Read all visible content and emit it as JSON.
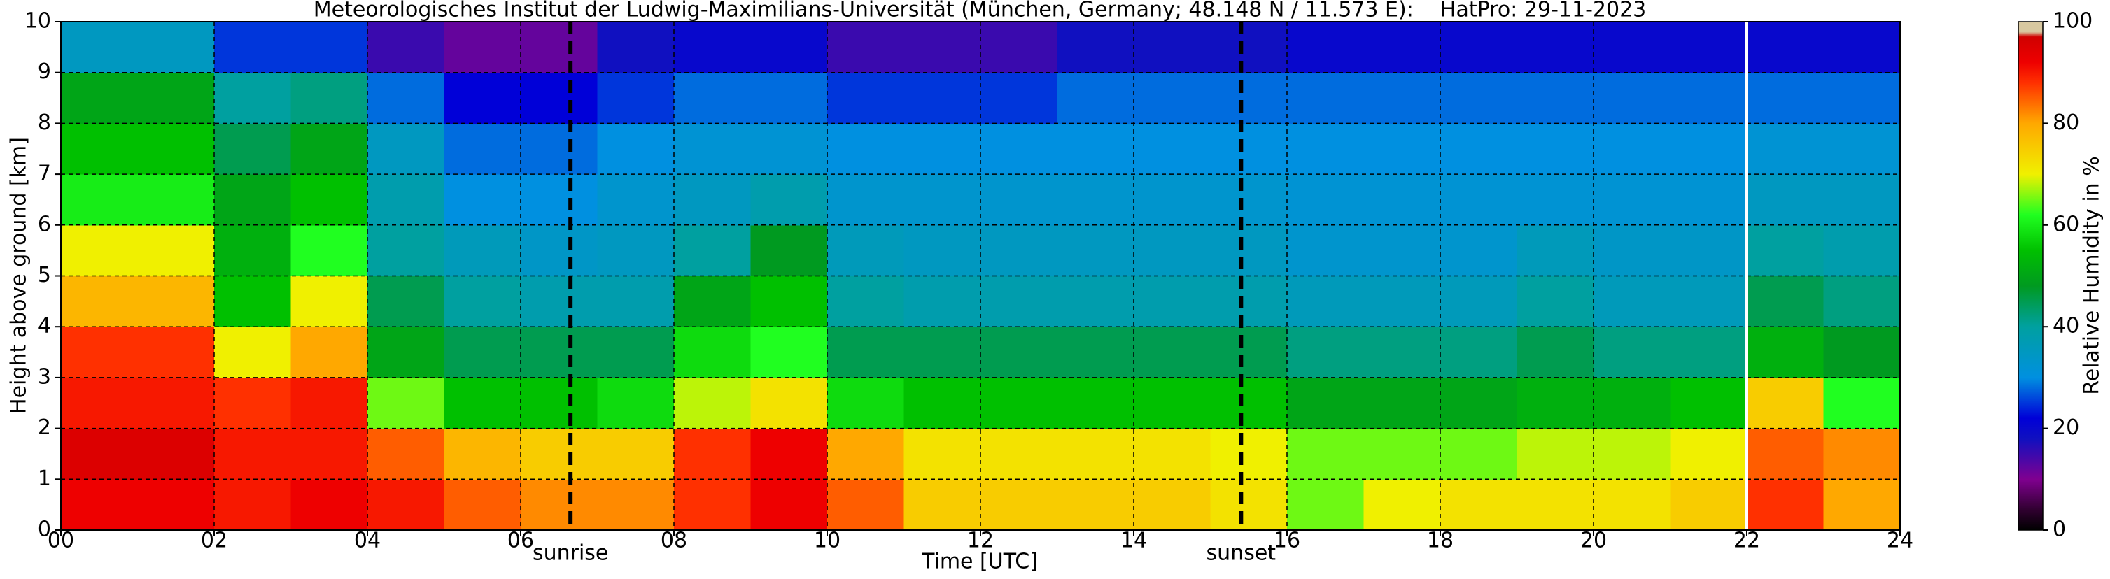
{
  "chart_data": {
    "type": "heatmap",
    "title": "Meteorologisches Institut der Ludwig-Maximilians-Universität (München, Germany; 48.148 N / 11.573 E):    HatPro: 29-11-2023",
    "xlabel": "Time [UTC]",
    "ylabel": "Height above ground [km]",
    "colorbar_label": "Relative Humidity in %",
    "xbins": [
      0,
      1,
      2,
      3,
      4,
      5,
      6,
      7,
      8,
      9,
      10,
      11,
      12,
      13,
      14,
      15,
      16,
      17,
      18,
      19,
      20,
      21,
      22,
      23,
      24
    ],
    "ybins": [
      0,
      1,
      2,
      3,
      4,
      5,
      6,
      7,
      8,
      9,
      10
    ],
    "z": [
      [
        92,
        92,
        90,
        92,
        90,
        85,
        82,
        82,
        88,
        92,
        85,
        75,
        75,
        75,
        75,
        72,
        65,
        70,
        72,
        72,
        72,
        75,
        88,
        80
      ],
      [
        95,
        95,
        90,
        90,
        85,
        78,
        75,
        75,
        88,
        92,
        80,
        72,
        72,
        72,
        72,
        70,
        65,
        65,
        65,
        68,
        68,
        70,
        85,
        82
      ],
      [
        90,
        90,
        88,
        90,
        65,
        55,
        55,
        58,
        68,
        72,
        58,
        55,
        55,
        55,
        55,
        55,
        50,
        50,
        50,
        52,
        52,
        55,
        75,
        62
      ],
      [
        88,
        88,
        70,
        80,
        50,
        45,
        45,
        45,
        58,
        62,
        45,
        45,
        45,
        45,
        45,
        45,
        42,
        42,
        42,
        45,
        42,
        42,
        52,
        48
      ],
      [
        78,
        78,
        55,
        70,
        45,
        40,
        38,
        38,
        50,
        55,
        40,
        38,
        38,
        38,
        38,
        38,
        36,
        36,
        36,
        40,
        36,
        36,
        45,
        42
      ],
      [
        70,
        70,
        52,
        62,
        40,
        36,
        34,
        35,
        40,
        48,
        36,
        35,
        35,
        35,
        35,
        35,
        33,
        33,
        33,
        36,
        34,
        34,
        40,
        38
      ],
      [
        60,
        60,
        50,
        55,
        38,
        30,
        30,
        33,
        35,
        38,
        33,
        33,
        33,
        33,
        33,
        33,
        32,
        32,
        32,
        32,
        32,
        32,
        35,
        35
      ],
      [
        55,
        55,
        45,
        50,
        35,
        28,
        28,
        30,
        32,
        32,
        30,
        30,
        30,
        30,
        30,
        30,
        30,
        30,
        30,
        30,
        30,
        30,
        32,
        32
      ],
      [
        50,
        50,
        40,
        42,
        28,
        22,
        22,
        25,
        28,
        28,
        25,
        25,
        25,
        28,
        28,
        28,
        28,
        28,
        28,
        28,
        28,
        28,
        28,
        28
      ],
      [
        35,
        35,
        25,
        25,
        15,
        12,
        12,
        18,
        20,
        20,
        15,
        15,
        15,
        18,
        18,
        18,
        20,
        20,
        20,
        20,
        20,
        20,
        20,
        20
      ]
    ],
    "xlim": [
      0,
      24
    ],
    "ylim": [
      0,
      10
    ],
    "zlim": [
      0,
      100
    ],
    "xticks": [
      {
        "value": 0,
        "label": "00"
      },
      {
        "value": 2,
        "label": "02"
      },
      {
        "value": 4,
        "label": "04"
      },
      {
        "value": 6,
        "label": "06"
      },
      {
        "value": 8,
        "label": "08"
      },
      {
        "value": 10,
        "label": "10"
      },
      {
        "value": 12,
        "label": "12"
      },
      {
        "value": 14,
        "label": "14"
      },
      {
        "value": 16,
        "label": "16"
      },
      {
        "value": 18,
        "label": "18"
      },
      {
        "value": 20,
        "label": "20"
      },
      {
        "value": 22,
        "label": "22"
      },
      {
        "value": 24,
        "label": "24"
      }
    ],
    "yticks": [
      0,
      1,
      2,
      3,
      4,
      5,
      6,
      7,
      8,
      9,
      10
    ],
    "zticks": [
      0,
      20,
      40,
      60,
      80,
      100
    ],
    "grid": true,
    "colormap": [
      [
        0,
        "#000000"
      ],
      [
        4,
        "#300030"
      ],
      [
        10,
        "#800090"
      ],
      [
        18,
        "#1010c0"
      ],
      [
        22,
        "#0000d8"
      ],
      [
        30,
        "#0090e0"
      ],
      [
        40,
        "#00a0a0"
      ],
      [
        48,
        "#009a20"
      ],
      [
        55,
        "#00c000"
      ],
      [
        62,
        "#20ff20"
      ],
      [
        70,
        "#f0f000"
      ],
      [
        80,
        "#ffa800"
      ],
      [
        88,
        "#ff3000"
      ],
      [
        92,
        "#ee0000"
      ],
      [
        97,
        "#d00000"
      ],
      [
        98,
        "#d8c8a0"
      ],
      [
        100,
        "#d8c8a0"
      ]
    ],
    "annotations": [
      {
        "text": "sunrise",
        "x": 6.65
      },
      {
        "text": "sunset",
        "x": 15.4
      }
    ],
    "data_gap_x": [
      22
    ]
  }
}
